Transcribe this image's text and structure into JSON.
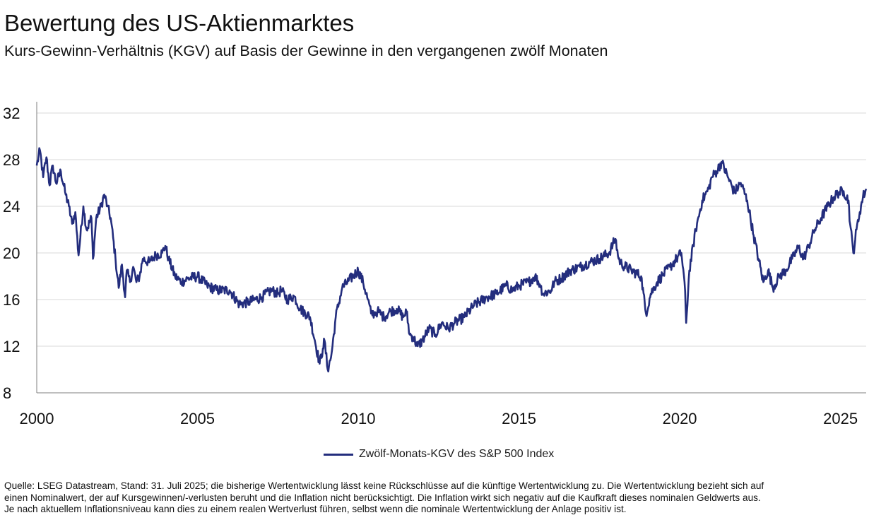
{
  "header": {
    "title": "Bewertung des US-Aktienmarktes",
    "subtitle": "Kurs-Gewinn-Verhältnis (KGV) auf Basis der Gewinne in den vergangenen zwölf Monaten"
  },
  "legend": {
    "label": "Zwölf-Monats-KGV des S&P 500 Index"
  },
  "footnote": {
    "line1": "Quelle: LSEG Datastream, Stand: 31. Juli 2025; die bisherige Wertentwicklung lässt keine Rückschlüsse auf die künftige Wertentwicklung zu. Die Wertentwicklung bezieht sich auf",
    "line2": "einen Nominalwert, der auf Kursgewinnen/-verlusten beruht und die Inflation nicht berücksichtigt. Die Inflation wirkt sich negativ auf die Kaufkraft dieses nominalen Geldwerts aus.",
    "line3": "Je nach aktuellem Inflationsniveau kann dies zu einem realen Wertverlust führen, selbst wenn die nominale Wertentwicklung der Anlage positiv ist."
  },
  "colors": {
    "series": "#232d7d",
    "grid": "#d9d9d9",
    "axis": "#7f7f7f"
  },
  "chart_data": {
    "type": "line",
    "title": "Bewertung des US-Aktienmarktes",
    "subtitle": "Kurs-Gewinn-Verhältnis (KGV) auf Basis der Gewinne in den vergangenen zwölf Monaten",
    "xlabel": "",
    "ylabel": "",
    "xlim": [
      2000.0,
      2025.8
    ],
    "ylim": [
      8,
      32
    ],
    "y_ticks": [
      8,
      12,
      16,
      20,
      24,
      28,
      32
    ],
    "x_ticks": [
      2000,
      2005,
      2010,
      2015,
      2020,
      2025
    ],
    "grid": "horizontal",
    "legend_position": "bottom-center",
    "series": [
      {
        "name": "Zwölf-Monats-KGV des S&P 500 Index",
        "x": [
          2000.0,
          2000.1,
          2000.2,
          2000.3,
          2000.4,
          2000.5,
          2000.6,
          2000.75,
          2000.9,
          2001.0,
          2001.1,
          2001.2,
          2001.3,
          2001.45,
          2001.55,
          2001.7,
          2001.75,
          2001.85,
          2002.0,
          2002.1,
          2002.2,
          2002.3,
          2002.45,
          2002.55,
          2002.65,
          2002.75,
          2002.8,
          2002.9,
          2003.0,
          2003.1,
          2003.2,
          2003.3,
          2003.5,
          2003.7,
          2003.9,
          2004.0,
          2004.1,
          2004.3,
          2004.5,
          2004.7,
          2005.0,
          2005.3,
          2005.6,
          2006.0,
          2006.3,
          2006.6,
          2007.0,
          2007.3,
          2007.5,
          2007.6,
          2007.8,
          2008.0,
          2008.2,
          2008.5,
          2008.65,
          2008.8,
          2008.9,
          2008.95,
          2009.05,
          2009.15,
          2009.2,
          2009.3,
          2009.5,
          2009.7,
          2010.0,
          2010.15,
          2010.3,
          2010.4,
          2010.5,
          2010.6,
          2010.8,
          2011.0,
          2011.2,
          2011.4,
          2011.5,
          2011.6,
          2011.7,
          2011.85,
          2012.0,
          2012.2,
          2012.4,
          2012.6,
          2012.8,
          2013.0,
          2013.3,
          2013.6,
          2014.0,
          2014.3,
          2014.6,
          2014.8,
          2015.0,
          2015.3,
          2015.5,
          2015.65,
          2015.75,
          2016.0,
          2016.1,
          2016.3,
          2016.6,
          2016.9,
          2017.2,
          2017.5,
          2017.8,
          2018.0,
          2018.1,
          2018.2,
          2018.5,
          2018.8,
          2018.95,
          2019.1,
          2019.3,
          2019.5,
          2019.7,
          2019.9,
          2020.05,
          2020.15,
          2020.2,
          2020.3,
          2020.5,
          2020.7,
          2020.9,
          2021.0,
          2021.15,
          2021.3,
          2021.5,
          2021.7,
          2021.9,
          2022.1,
          2022.3,
          2022.45,
          2022.6,
          2022.75,
          2022.9,
          2023.1,
          2023.3,
          2023.5,
          2023.7,
          2023.85,
          2024.0,
          2024.2,
          2024.4,
          2024.6,
          2024.8,
          2024.95,
          2025.1,
          2025.25,
          2025.3,
          2025.4,
          2025.5,
          2025.6,
          2025.7,
          2025.8
        ],
        "values": [
          27.5,
          28.8,
          26.5,
          28.2,
          25.8,
          27.5,
          26.0,
          27.0,
          25.0,
          24.0,
          22.5,
          23.5,
          19.8,
          24.0,
          22.0,
          23.0,
          19.5,
          23.0,
          24.0,
          25.0,
          24.0,
          23.0,
          19.5,
          17.0,
          19.0,
          16.2,
          18.5,
          17.5,
          18.8,
          17.5,
          18.0,
          19.5,
          19.2,
          19.8,
          20.0,
          20.6,
          19.5,
          18.0,
          17.5,
          17.8,
          18.0,
          17.2,
          16.8,
          16.8,
          15.6,
          15.8,
          16.2,
          16.8,
          16.5,
          16.8,
          16.0,
          16.3,
          15.2,
          14.5,
          12.5,
          10.5,
          11.8,
          12.5,
          10.0,
          11.0,
          12.0,
          14.5,
          17.0,
          17.6,
          18.5,
          17.5,
          16.0,
          14.8,
          14.8,
          15.0,
          14.5,
          15.0,
          15.2,
          14.5,
          15.0,
          13.0,
          12.8,
          12.0,
          12.5,
          13.5,
          13.0,
          14.0,
          13.5,
          14.0,
          14.5,
          15.5,
          16.2,
          16.5,
          17.2,
          16.8,
          17.2,
          17.5,
          18.0,
          17.3,
          16.5,
          16.8,
          17.5,
          17.8,
          18.5,
          18.8,
          19.2,
          19.5,
          20.0,
          21.2,
          19.5,
          19.0,
          18.5,
          18.0,
          14.8,
          16.5,
          17.5,
          18.2,
          18.8,
          19.5,
          20.0,
          17.5,
          14.0,
          18.5,
          22.0,
          24.5,
          25.5,
          26.5,
          27.0,
          27.8,
          26.5,
          25.2,
          26.0,
          24.5,
          21.5,
          19.5,
          17.5,
          18.5,
          17.0,
          18.0,
          18.5,
          19.5,
          20.5,
          19.5,
          20.5,
          22.0,
          23.0,
          24.0,
          24.8,
          25.2,
          25.3,
          24.5,
          22.5,
          20.0,
          22.0,
          23.5,
          24.8,
          25.5
        ]
      }
    ]
  }
}
